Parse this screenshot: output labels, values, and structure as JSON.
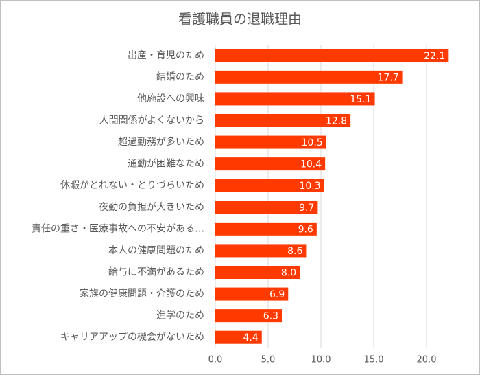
{
  "chart_data": {
    "type": "bar",
    "orientation": "horizontal",
    "title": "看護職員の退職理由",
    "categories": [
      "出産・育児のため",
      "結婚のため",
      "他施設への興味",
      "人間関係がよくないから",
      "超過勤務が多いため",
      "通勤が困難なため",
      "休暇がとれない・とりづらいため",
      "夜勤の負担が大きいため",
      "責任の重さ・医療事故への不安がある…",
      "本人の健康問題のため",
      "給与に不満があるため",
      "家族の健康問題・介護のため",
      "進学のため",
      "キャリアアップの機会がないため"
    ],
    "values": [
      22.1,
      17.7,
      15.1,
      12.8,
      10.5,
      10.4,
      10.3,
      9.7,
      9.6,
      8.6,
      8.0,
      6.9,
      6.3,
      4.4
    ],
    "value_labels": [
      "22.1",
      "17.7",
      "15.1",
      "12.8",
      "10.5",
      "10.4",
      "10.3",
      "9.7",
      "9.6",
      "8.6",
      "8.0",
      "6.9",
      "6.3",
      "4.4"
    ],
    "color": "#ff3a00",
    "xlim": [
      0,
      22.5
    ],
    "xticks": [
      {
        "value": 0,
        "label": "0.0"
      },
      {
        "value": 5,
        "label": "5.0"
      },
      {
        "value": 10,
        "label": "10.0"
      },
      {
        "value": 15,
        "label": "15.0"
      },
      {
        "value": 20,
        "label": "20.0"
      }
    ],
    "grid": true
  }
}
